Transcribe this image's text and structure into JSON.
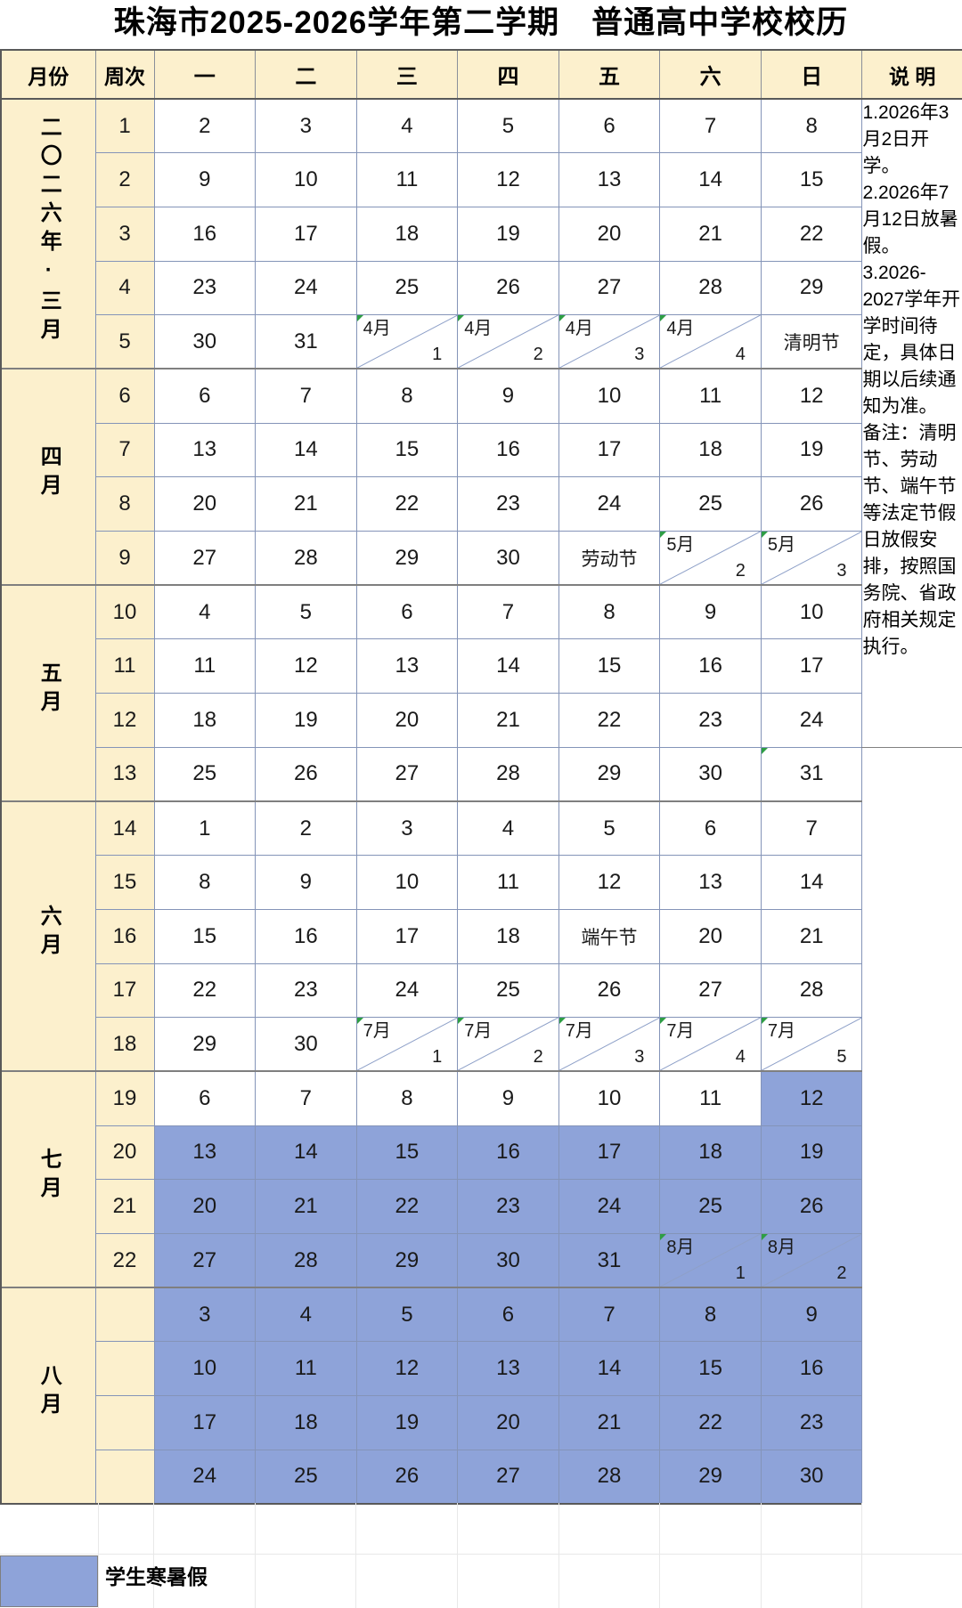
{
  "title": "珠海市2025-2026学年第二学期　普通高中学校校历",
  "table": {
    "headers": {
      "month": "月份",
      "week": "周次",
      "days": [
        "一",
        "二",
        "三",
        "四",
        "五",
        "六",
        "日"
      ],
      "notes": "说 明"
    },
    "months": [
      {
        "label": "二〇二六年·三月",
        "rows": [
          {
            "week": "1",
            "days": [
              "2",
              "3",
              "4",
              "5",
              "6",
              "7",
              "8"
            ]
          },
          {
            "week": "2",
            "days": [
              "9",
              "10",
              "11",
              "12",
              "13",
              "14",
              "15"
            ]
          },
          {
            "week": "3",
            "days": [
              "16",
              "17",
              "18",
              "19",
              "20",
              "21",
              "22"
            ]
          },
          {
            "week": "4",
            "days": [
              "23",
              "24",
              "25",
              "26",
              "27",
              "28",
              "29"
            ]
          },
          {
            "week": "5",
            "days": [
              "30",
              "31",
              {
                "m": "4月",
                "d": "1"
              },
              {
                "m": "4月",
                "d": "2"
              },
              {
                "m": "4月",
                "d": "3"
              },
              {
                "m": "4月",
                "d": "4"
              },
              "清明节"
            ]
          }
        ]
      },
      {
        "label": "四月",
        "rows": [
          {
            "week": "6",
            "days": [
              "6",
              "7",
              "8",
              "9",
              "10",
              "11",
              "12"
            ]
          },
          {
            "week": "7",
            "days": [
              "13",
              "14",
              "15",
              "16",
              "17",
              "18",
              "19"
            ]
          },
          {
            "week": "8",
            "days": [
              "20",
              "21",
              "22",
              "23",
              "24",
              "25",
              "26"
            ]
          },
          {
            "week": "9",
            "days": [
              "27",
              "28",
              "29",
              "30",
              "劳动节",
              {
                "m": "5月",
                "d": "2"
              },
              {
                "m": "5月",
                "d": "3"
              }
            ]
          }
        ]
      },
      {
        "label": "五月",
        "rows": [
          {
            "week": "10",
            "days": [
              "4",
              "5",
              "6",
              "7",
              "8",
              "9",
              "10"
            ]
          },
          {
            "week": "11",
            "days": [
              "11",
              "12",
              "13",
              "14",
              "15",
              "16",
              "17"
            ]
          },
          {
            "week": "12",
            "days": [
              "18",
              "19",
              "20",
              "21",
              "22",
              "23",
              "24"
            ]
          },
          {
            "week": "13",
            "days": [
              "25",
              "26",
              "27",
              "28",
              "29",
              "30",
              {
                "text": "31",
                "marker": true
              }
            ]
          }
        ]
      },
      {
        "label": "六月",
        "rows": [
          {
            "week": "14",
            "days": [
              "1",
              "2",
              "3",
              "4",
              "5",
              "6",
              "7"
            ]
          },
          {
            "week": "15",
            "days": [
              "8",
              "9",
              "10",
              "11",
              "12",
              "13",
              "14"
            ]
          },
          {
            "week": "16",
            "days": [
              "15",
              "16",
              "17",
              "18",
              "端午节",
              "20",
              "21"
            ]
          },
          {
            "week": "17",
            "days": [
              "22",
              "23",
              "24",
              "25",
              "26",
              "27",
              "28"
            ]
          },
          {
            "week": "18",
            "days": [
              "29",
              "30",
              {
                "m": "7月",
                "d": "1"
              },
              {
                "m": "7月",
                "d": "2"
              },
              {
                "m": "7月",
                "d": "3"
              },
              {
                "m": "7月",
                "d": "4"
              },
              {
                "m": "7月",
                "d": "5"
              }
            ]
          }
        ]
      },
      {
        "label": "七月",
        "rows": [
          {
            "week": "19",
            "days": [
              "6",
              "7",
              "8",
              "9",
              "10",
              "11",
              "12"
            ],
            "vacation": [
              6
            ]
          },
          {
            "week": "20",
            "days": [
              "13",
              "14",
              "15",
              "16",
              "17",
              "18",
              "19"
            ],
            "vacation": "all"
          },
          {
            "week": "21",
            "days": [
              "20",
              "21",
              "22",
              "23",
              "24",
              "25",
              "26"
            ],
            "vacation": "all"
          },
          {
            "week": "22",
            "days": [
              "27",
              "28",
              "29",
              "30",
              "31",
              {
                "m": "8月",
                "d": "1"
              },
              {
                "m": "8月",
                "d": "2"
              }
            ],
            "vacation": "all"
          }
        ]
      },
      {
        "label": "八月",
        "rows": [
          {
            "week": "",
            "days": [
              "3",
              "4",
              "5",
              "6",
              "7",
              "8",
              "9"
            ],
            "vacation": "all"
          },
          {
            "week": "",
            "days": [
              "10",
              "11",
              "12",
              "13",
              "14",
              "15",
              "16"
            ],
            "vacation": "all"
          },
          {
            "week": "",
            "days": [
              "17",
              "18",
              "19",
              "20",
              "21",
              "22",
              "23"
            ],
            "vacation": "all"
          },
          {
            "week": "",
            "days": [
              "24",
              "25",
              "26",
              "27",
              "28",
              "29",
              "30"
            ],
            "vacation": "all"
          }
        ]
      }
    ],
    "notes_text": "1.2026年3月2日开学。\n2.2026年7月12日放暑假。\n3.2026-2027学年开学时间待定，具体日期以后续通知为准。\n备注：清明节、劳动节、端午节等法定节假日放假安排，按照国务院、省政府相关规定执行。",
    "notes_rowspan": 12
  },
  "legend": {
    "label": "学生寒暑假"
  },
  "colors": {
    "header_bg": "#FCF0CD",
    "vacation_bg": "#8EA3D9",
    "cell_border": "#8494B8",
    "frame_border": "#595959",
    "month_separator": "#7f7f7f",
    "diagonal_line": "#8EA0C8",
    "marker_green": "#2E9E44"
  }
}
